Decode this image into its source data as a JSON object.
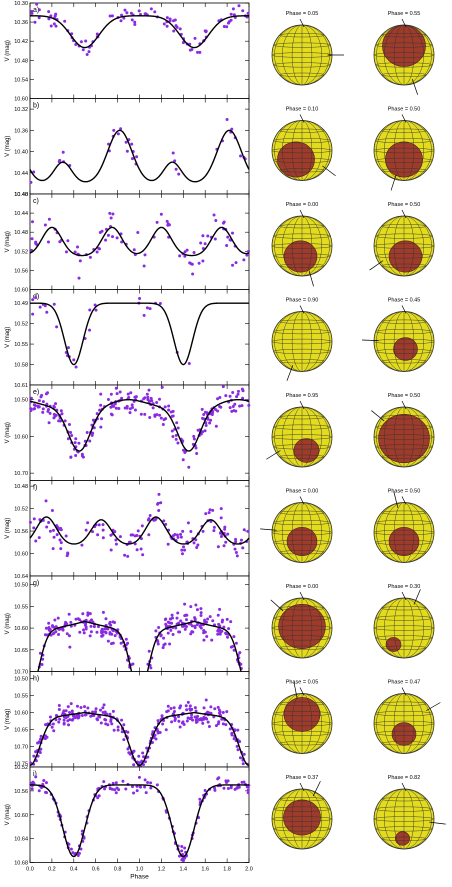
{
  "chart_data": {
    "type": "scatter",
    "xlabel": "Phase",
    "x_ticks": [
      "0.0",
      "0.2",
      "0.4",
      "0.6",
      "0.8",
      "1.0",
      "1.2",
      "1.4",
      "1.6",
      "1.8",
      "2.0"
    ],
    "xlim": [
      0,
      2
    ],
    "point_color": "#8a2be2",
    "curve_color": "#000000",
    "sphere_color": "#e3dc1e",
    "spot_color": "#9e3b2b",
    "panels": [
      {
        "label": "a)",
        "ylabel": "V (mag)",
        "ylim": [
          10.6,
          10.3
        ],
        "yticks": [
          "10.30",
          "10.36",
          "10.42",
          "10.48",
          "10.54",
          "10.60"
        ],
        "curve": {
          "base": 10.34,
          "components": [
            {
              "amp": 0.1,
              "center": 0.5,
              "sigma": 0.13
            },
            {
              "amp": 0.0,
              "center": 0.5,
              "sigma": 0.1
            }
          ]
        },
        "points": {
          "count": 110,
          "scatter": 0.018,
          "gaps": [
            [
              0.62,
              0.72
            ],
            [
              1.62,
              1.72
            ]
          ]
        },
        "phases": [
          "Phase = 0.05",
          "Phase = 0.55"
        ],
        "spots": [
          {
            "cx": 0.0,
            "cy": 0.0,
            "r": 0.0
          },
          {
            "cx": 0.0,
            "cy": -0.3,
            "r": 0.72
          }
        ]
      },
      {
        "label": "b)",
        "ylabel": "V (mag)",
        "ylim": [
          10.48,
          10.3
        ],
        "yticks": [
          "10.32",
          "10.36",
          "10.40",
          "10.44",
          "10.48"
        ],
        "curve": {
          "base": 10.46,
          "components": [
            {
              "amp": -0.04,
              "center": 0.3,
              "sigma": 0.08
            },
            {
              "amp": -0.1,
              "center": 0.82,
              "sigma": 0.11
            }
          ]
        },
        "points": {
          "count": 70,
          "scatter": 0.01,
          "gaps": [
            [
              0.05,
              0.25
            ],
            [
              0.4,
              0.7
            ],
            [
              1.05,
              1.25
            ],
            [
              1.4,
              1.7
            ]
          ]
        },
        "phases": [
          "Phase = 0.10",
          "Phase = 0.50"
        ],
        "spots": [
          {
            "cx": -0.2,
            "cy": 0.3,
            "r": 0.62
          },
          {
            "cx": 0.0,
            "cy": 0.3,
            "r": 0.62
          }
        ]
      },
      {
        "label": "c)",
        "ylabel": "V (mag)",
        "ylim": [
          10.6,
          10.4
        ],
        "yticks": [
          "10.40",
          "10.44",
          "10.48",
          "10.52",
          "10.56",
          "10.60"
        ],
        "curve": {
          "base": 10.53,
          "components": [
            {
              "amp": -0.06,
              "center": 0.2,
              "sigma": 0.09
            },
            {
              "amp": -0.06,
              "center": 0.75,
              "sigma": 0.09
            }
          ]
        },
        "points": {
          "count": 90,
          "scatter": 0.018,
          "gaps": []
        },
        "phases": [
          "Phase = 0.00",
          "Phase = 0.50"
        ],
        "spots": [
          {
            "cx": -0.05,
            "cy": 0.35,
            "r": 0.55
          },
          {
            "cx": 0.05,
            "cy": 0.35,
            "r": 0.55
          }
        ]
      },
      {
        "label": "d)",
        "ylabel": "V (mag)",
        "ylim": [
          10.61,
          10.47
        ],
        "yticks": [
          "10.49",
          "10.52",
          "10.55",
          "10.58",
          "10.61"
        ],
        "curve": {
          "base": 10.49,
          "components": [
            {
              "amp": 0.09,
              "center": 0.4,
              "sigma": 0.085
            },
            {
              "amp": 0.0,
              "center": 0.4,
              "sigma": 0.1
            }
          ]
        },
        "points": {
          "count": 45,
          "scatter": 0.008,
          "gaps": [
            [
              0.65,
              0.95
            ],
            [
              1.65,
              1.95
            ]
          ]
        },
        "phases": [
          "Phase = 0.90",
          "Phase = 0.45"
        ],
        "spots": [
          {
            "cx": 0.0,
            "cy": 0.0,
            "r": 0.0
          },
          {
            "cx": 0.05,
            "cy": 0.25,
            "r": 0.4
          }
        ]
      },
      {
        "label": "e)",
        "ylabel": "V (mag)",
        "ylim": [
          10.72,
          10.46
        ],
        "yticks": [
          "10.50",
          "10.60",
          "10.70"
        ],
        "curve": {
          "base": 10.52,
          "components": [
            {
              "amp": 0.12,
              "center": 0.45,
              "sigma": 0.1
            },
            {
              "amp": -0.02,
              "center": 0.9,
              "sigma": 0.15
            }
          ]
        },
        "points": {
          "count": 240,
          "scatter": 0.02,
          "gaps": []
        },
        "phases": [
          "Phase = 0.95",
          "Phase = 0.50"
        ],
        "spots": [
          {
            "cx": 0.15,
            "cy": 0.45,
            "r": 0.42
          },
          {
            "cx": 0.0,
            "cy": 0.05,
            "r": 0.85
          }
        ]
      },
      {
        "label": "f)",
        "ylabel": "V (mag)",
        "ylim": [
          10.64,
          10.47
        ],
        "yticks": [
          "10.48",
          "10.52",
          "10.56",
          "10.60",
          "10.64"
        ],
        "curve": {
          "base": 10.585,
          "components": [
            {
              "amp": -0.05,
              "center": 0.15,
              "sigma": 0.09
            },
            {
              "amp": -0.045,
              "center": 0.65,
              "sigma": 0.09
            }
          ]
        },
        "points": {
          "count": 150,
          "scatter": 0.015,
          "gaps": []
        },
        "phases": [
          "Phase = 0.00",
          "Phase = 0.50"
        ],
        "spots": [
          {
            "cx": 0.0,
            "cy": 0.3,
            "r": 0.5
          },
          {
            "cx": 0.0,
            "cy": 0.3,
            "r": 0.5
          }
        ]
      },
      {
        "label": "g)",
        "ylabel": "V (mag)",
        "ylim": [
          10.7,
          10.48
        ],
        "yticks": [
          "10.50",
          "10.55",
          "10.60",
          "10.65",
          "10.70"
        ],
        "curve": {
          "base": 10.545,
          "components": [
            {
              "amp": 0.145,
              "center": 1.0,
              "sigma": 0.08
            },
            {
              "amp": 0.06,
              "center": 0.0,
              "sigma": 0.55
            }
          ]
        },
        "points": {
          "count": 300,
          "scatter": 0.016,
          "gaps": []
        },
        "phases": [
          "Phase = 0.00",
          "Phase = 0.30"
        ],
        "spots": [
          {
            "cx": 0.0,
            "cy": -0.05,
            "r": 0.78
          },
          {
            "cx": -0.35,
            "cy": 0.55,
            "r": 0.25
          }
        ]
      },
      {
        "label": "h)",
        "ylabel": "V (mag)",
        "ylim": [
          10.76,
          10.48
        ],
        "yticks": [
          "10.50",
          "10.55",
          "10.60",
          "10.65",
          "10.70",
          "10.75"
        ],
        "curve": {
          "base": 10.565,
          "components": [
            {
              "amp": 0.14,
              "center": 1.0,
              "sigma": 0.09
            },
            {
              "amp": 0.05,
              "center": 0.0,
              "sigma": 0.6
            }
          ]
        },
        "points": {
          "count": 300,
          "scatter": 0.016,
          "gaps": []
        },
        "phases": [
          "Phase = 0.05",
          "Phase = 0.47"
        ],
        "spots": [
          {
            "cx": 0.0,
            "cy": -0.3,
            "r": 0.6
          },
          {
            "cx": 0.0,
            "cy": 0.35,
            "r": 0.4
          }
        ]
      },
      {
        "label": "i)",
        "ylabel": "V (mag)",
        "ylim": [
          10.68,
          10.52
        ],
        "yticks": [
          "10.52",
          "10.56",
          "10.60",
          "10.64",
          "10.68"
        ],
        "curve": {
          "base": 10.55,
          "components": [
            {
              "amp": 0.12,
              "center": 0.4,
              "sigma": 0.1
            },
            {
              "amp": 0.0,
              "center": 0.4,
              "sigma": 0.1
            }
          ]
        },
        "points": {
          "count": 160,
          "scatter": 0.006,
          "gaps": []
        },
        "phases": [
          "Phase = 0.37",
          "Phase = 0.82"
        ],
        "spots": [
          {
            "cx": 0.0,
            "cy": -0.05,
            "r": 0.62
          },
          {
            "cx": -0.05,
            "cy": 0.65,
            "r": 0.24
          }
        ]
      }
    ]
  }
}
